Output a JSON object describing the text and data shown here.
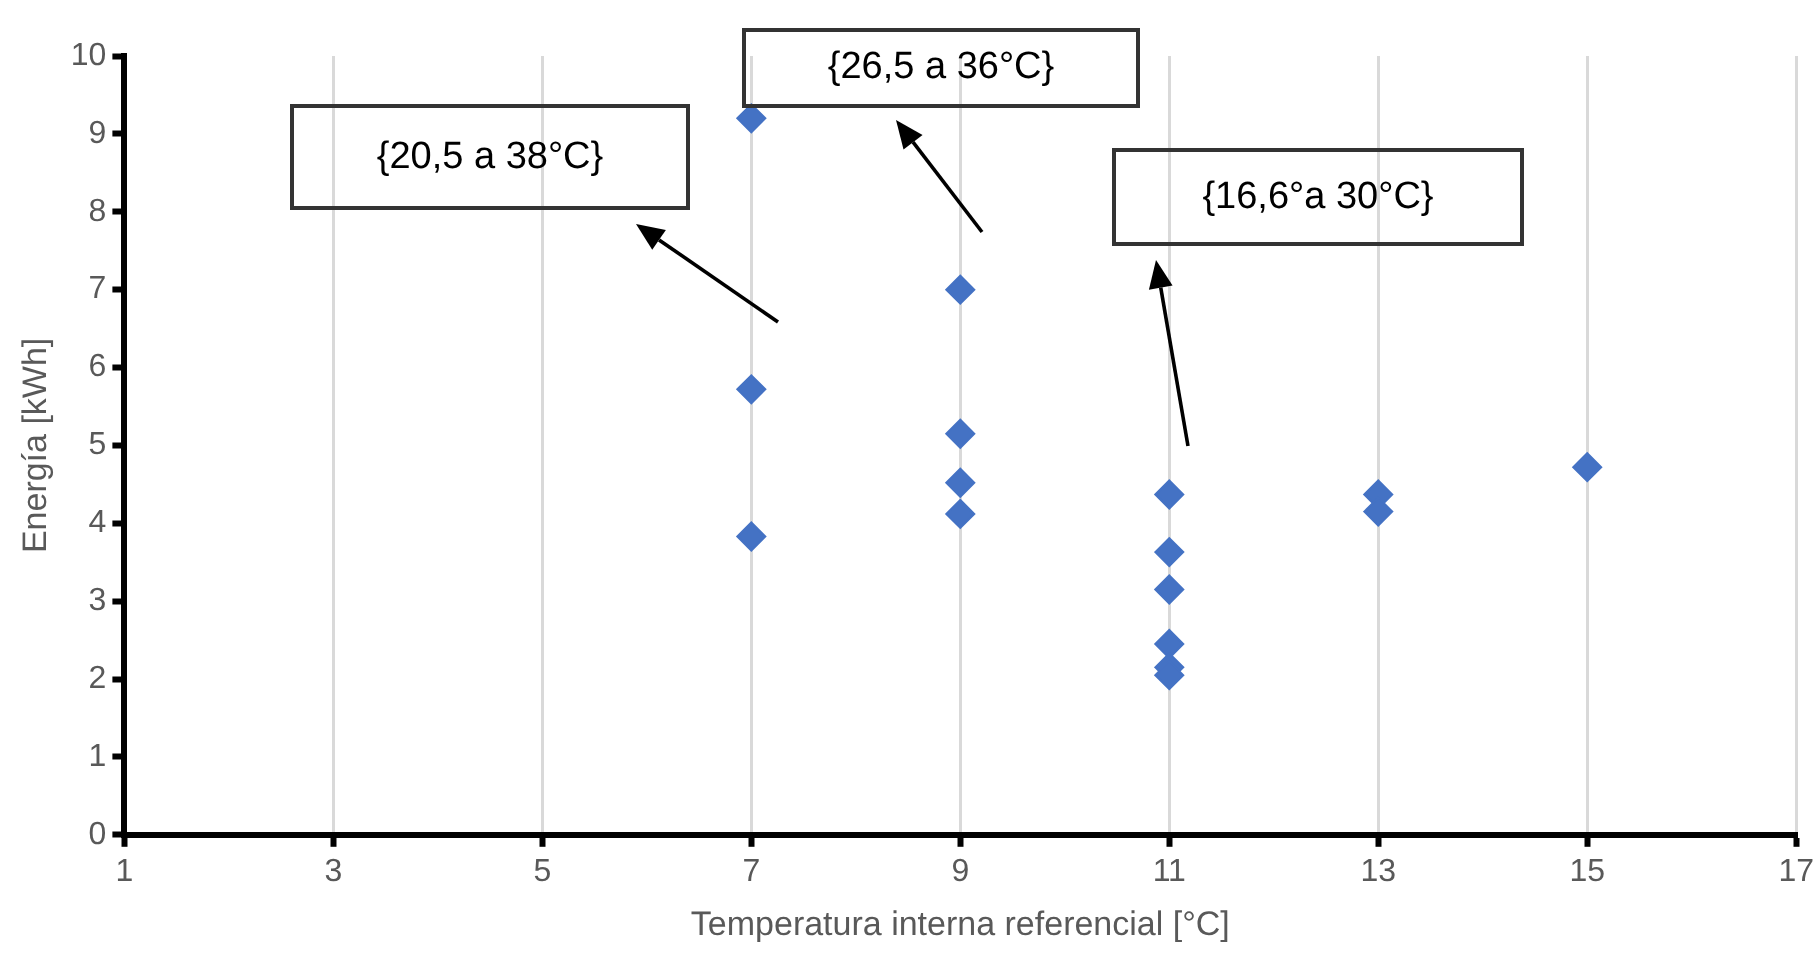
{
  "chart_data": {
    "type": "scatter",
    "xlabel": "Temperatura interna referencial [°C]",
    "ylabel": "Energía [kWh]",
    "x": [
      7,
      7,
      7,
      9,
      9,
      9,
      9,
      11,
      11,
      11,
      11,
      11,
      11,
      13,
      13,
      15
    ],
    "values": [
      9.2,
      5.72,
      3.83,
      7.0,
      5.15,
      4.52,
      4.12,
      4.37,
      3.63,
      3.15,
      2.45,
      2.15,
      2.05,
      4.37,
      4.15,
      4.72
    ],
    "color": "#4472c4",
    "marker": "diamond",
    "grid": "x",
    "legend": false,
    "xlim": [
      1,
      17
    ],
    "xticks": [
      1,
      3,
      5,
      7,
      9,
      11,
      13,
      15,
      17
    ],
    "ylim": [
      0,
      10
    ],
    "yticks": [
      0,
      1,
      2,
      3,
      4,
      5,
      6,
      7,
      8,
      9,
      10
    ],
    "annotations": [
      "{20,5 a 38°C}",
      "{26,5 a 36°C}",
      "{16,6°a 30°C}"
    ]
  }
}
